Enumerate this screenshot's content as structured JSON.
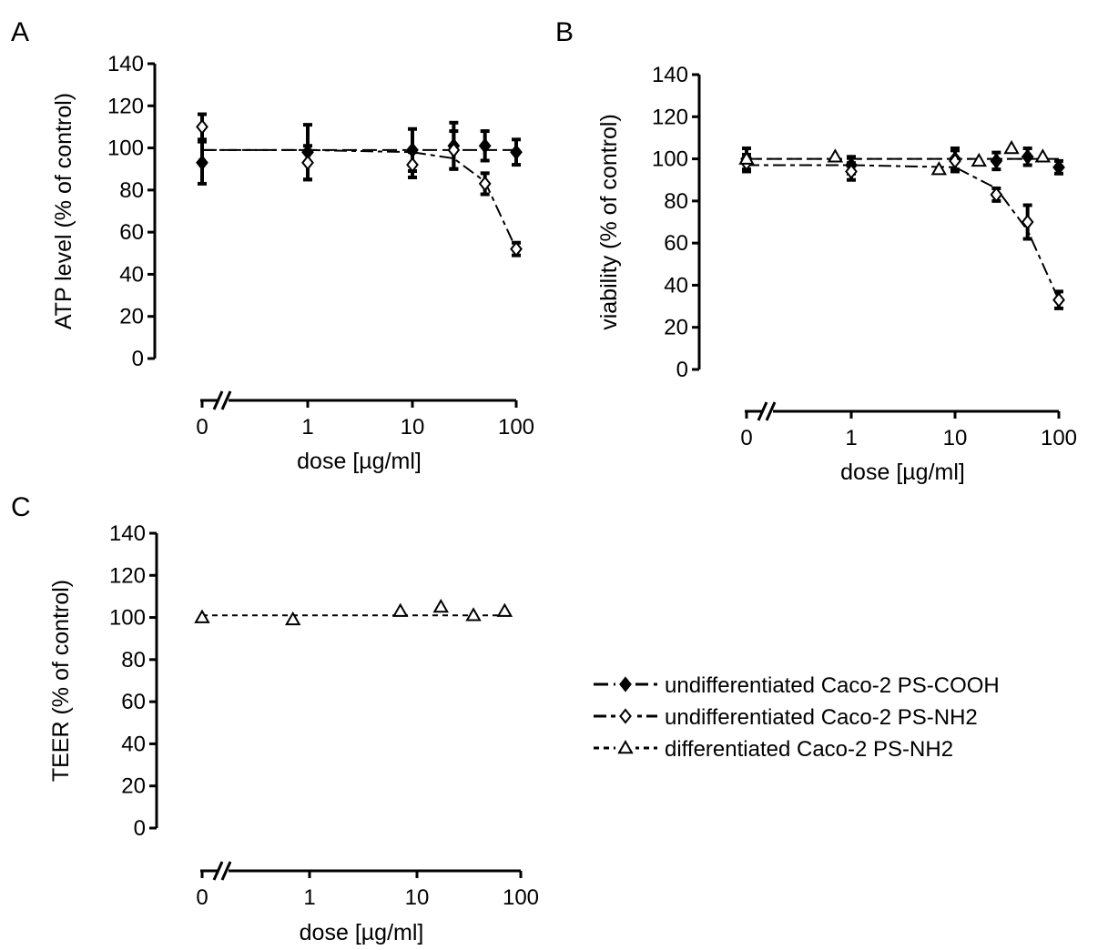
{
  "figure": {
    "legend": [
      {
        "label": "undifferentiated Caco-2 PS-COOH",
        "marker": "diamond-filled",
        "dash": "long"
      },
      {
        "label": "undifferentiated Caco-2 PS-NH2",
        "marker": "diamond-open",
        "dash": "long-short"
      },
      {
        "label": "differentiated Caco-2 PS-NH2",
        "marker": "triangle-open",
        "dash": "short"
      }
    ]
  },
  "chart_data": [
    {
      "panel": "A",
      "type": "scatter",
      "xlabel": "dose [µg/ml]",
      "ylabel": "ATP level (% of control)",
      "ylim": [
        0,
        140
      ],
      "yticks": [
        0,
        20,
        40,
        60,
        80,
        100,
        120,
        140
      ],
      "x_scale": "log with axis break",
      "xticks": [
        "0",
        "1",
        "10",
        "100"
      ],
      "series": [
        {
          "name": "undifferentiated Caco-2 PS-COOH",
          "marker": "diamond-filled",
          "x": [
            0,
            1,
            10,
            25,
            50,
            100
          ],
          "y": [
            93,
            98,
            99,
            101,
            101,
            98
          ],
          "err": [
            10,
            13,
            10,
            11,
            7,
            6
          ],
          "fit": [
            99,
            99,
            99,
            99,
            99,
            99
          ]
        },
        {
          "name": "undifferentiated Caco-2 PS-NH2",
          "marker": "diamond-open",
          "x": [
            0,
            1,
            10,
            25,
            50,
            100
          ],
          "y": [
            110,
            93,
            92,
            99,
            83,
            52
          ],
          "err": [
            6,
            8,
            6,
            9,
            5,
            3
          ],
          "fit": [
            99,
            99,
            98,
            95,
            84,
            52
          ]
        }
      ]
    },
    {
      "panel": "B",
      "type": "scatter",
      "xlabel": "dose [µg/ml]",
      "ylabel": "viability (% of control)",
      "ylim": [
        0,
        140
      ],
      "yticks": [
        0,
        20,
        40,
        60,
        80,
        100,
        120,
        140
      ],
      "x_scale": "log with axis break",
      "xticks": [
        "0",
        "1",
        "10",
        "100"
      ],
      "series": [
        {
          "name": "undifferentiated Caco-2 PS-COOH",
          "marker": "diamond-filled",
          "x": [
            0,
            1,
            10,
            25,
            50,
            100
          ],
          "y": [
            100,
            97,
            100,
            99,
            101,
            96
          ],
          "err": [
            5,
            4,
            5,
            4,
            4,
            3
          ],
          "fit": [
            100,
            100,
            100,
            100,
            100,
            100
          ]
        },
        {
          "name": "undifferentiated Caco-2 PS-NH2",
          "marker": "diamond-open",
          "x": [
            0,
            1,
            10,
            25,
            50,
            100
          ],
          "y": [
            98,
            94,
            99,
            83,
            70,
            33
          ],
          "err": [
            4,
            4,
            5,
            3,
            8,
            4
          ],
          "fit": [
            97,
            97,
            96,
            86,
            66,
            33
          ]
        },
        {
          "name": "differentiated Caco-2 PS-NH2",
          "marker": "triangle-open",
          "x": [
            0,
            0.7,
            7,
            17,
            35,
            70
          ],
          "y": [
            100,
            101,
            95,
            99,
            105,
            101
          ],
          "err": [
            0,
            0,
            0,
            0,
            0,
            0
          ],
          "fit": [
            100,
            100,
            100,
            100,
            100,
            100
          ]
        }
      ]
    },
    {
      "panel": "C",
      "type": "scatter",
      "xlabel": "dose [µg/ml]",
      "ylabel": "TEER (% of control)",
      "ylim": [
        0,
        140
      ],
      "yticks": [
        0,
        20,
        40,
        60,
        80,
        100,
        120,
        140
      ],
      "x_scale": "log with axis break",
      "xticks": [
        "0",
        "1",
        "10",
        "100"
      ],
      "series": [
        {
          "name": "differentiated Caco-2 PS-NH2",
          "marker": "triangle-open",
          "x": [
            0,
            0.7,
            7,
            17,
            35,
            70
          ],
          "y": [
            100,
            99,
            103,
            105,
            101,
            103
          ],
          "err": [
            0,
            0,
            0,
            0,
            0,
            0
          ],
          "fit": [
            101,
            101,
            101,
            101,
            101,
            101
          ]
        }
      ]
    }
  ]
}
